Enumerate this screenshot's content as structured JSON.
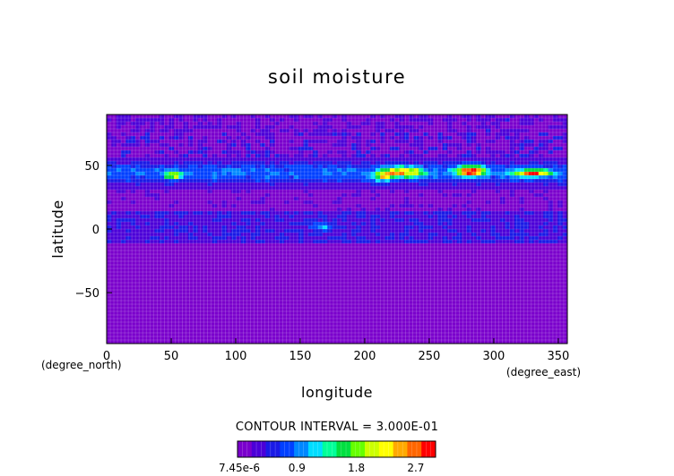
{
  "chart_data": {
    "type": "heatmap",
    "title": "soil moisture",
    "xlabel": "longitude",
    "ylabel": "latitude",
    "x_unit": "(degree_east)",
    "y_unit": "(degree_north)",
    "xlim": [
      0,
      357
    ],
    "ylim": [
      -90,
      90
    ],
    "x_ticks": [
      0,
      50,
      100,
      150,
      200,
      250,
      300,
      350
    ],
    "y_ticks": [
      50,
      0,
      -50
    ],
    "contour_interval_text": "CONTOUR INTERVAL = 3.000E-01",
    "contour_interval": 0.3,
    "colorbar": {
      "min": 7.45e-06,
      "max": 3.0,
      "tick_labels": [
        "7.45e-6",
        "0.9",
        "1.8",
        "2.7"
      ],
      "colors": [
        "#7a00cc",
        "#4b00d8",
        "#1a1ae6",
        "#0040ff",
        "#0088ff",
        "#00ddff",
        "#00ff99",
        "#00e040",
        "#66ff00",
        "#ccff00",
        "#ffff00",
        "#ffaa00",
        "#ff6600",
        "#ff0000"
      ]
    },
    "regions": [
      {
        "band": "polar north",
        "lat": [
          75,
          90
        ],
        "level": 0.12
      },
      {
        "band": "northern mid-latitudes",
        "lat": [
          30,
          70
        ],
        "level": 0.4
      },
      {
        "band": "subtropics north",
        "lat": [
          15,
          30
        ],
        "level": 0.05
      },
      {
        "band": "tropics",
        "lat": [
          -10,
          15
        ],
        "level": 0.35
      },
      {
        "band": "southern hemisphere",
        "lat": [
          -90,
          -10
        ],
        "level": 0.0
      },
      {
        "band": "maximum near lon 45-60, lat 40-45",
        "level": 1.8
      },
      {
        "band": "maximum near lon 210-250, lat 40-50",
        "level": 2.1
      },
      {
        "band": "maximum near lon 260-300, lat 40-50",
        "level": 2.7
      },
      {
        "band": "maximum near lon 310-350, lat 40-48",
        "level": 2.4
      }
    ],
    "grid": true
  }
}
